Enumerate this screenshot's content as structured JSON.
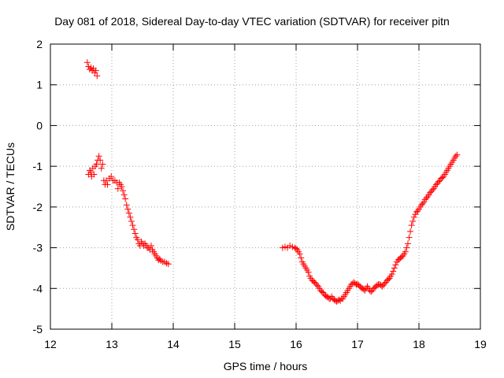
{
  "chart_data": {
    "type": "scatter",
    "title": "Day 081 of 2018, Sidereal Day-to-day VTEC variation (SDTVAR) for receiver pitn",
    "xlabel": "GPS time / hours",
    "ylabel": "SDTVAR / TECUs",
    "xlim": [
      12,
      19
    ],
    "ylim": [
      -5,
      2
    ],
    "xticks": [
      12,
      13,
      14,
      15,
      16,
      17,
      18,
      19
    ],
    "yticks": [
      -5,
      -4,
      -3,
      -2,
      -1,
      0,
      1,
      2
    ],
    "grid": true,
    "marker": "+",
    "series": [
      {
        "name": "SDTVAR",
        "color": "#ff0000",
        "points": [
          [
            12.6,
            1.55
          ],
          [
            12.62,
            1.45
          ],
          [
            12.64,
            1.38
          ],
          [
            12.66,
            1.42
          ],
          [
            12.68,
            1.35
          ],
          [
            12.7,
            1.4
          ],
          [
            12.72,
            1.3
          ],
          [
            12.74,
            1.35
          ],
          [
            12.76,
            1.22
          ],
          [
            12.62,
            -1.2
          ],
          [
            12.64,
            -1.1
          ],
          [
            12.66,
            -1.15
          ],
          [
            12.67,
            -1.25
          ],
          [
            12.69,
            -1.05
          ],
          [
            12.71,
            -1.2
          ],
          [
            12.73,
            -1.0
          ],
          [
            12.75,
            -0.95
          ],
          [
            12.77,
            -0.85
          ],
          [
            12.79,
            -0.75
          ],
          [
            12.81,
            -0.85
          ],
          [
            12.83,
            -1.05
          ],
          [
            12.85,
            -0.95
          ],
          [
            12.87,
            -1.35
          ],
          [
            12.89,
            -1.45
          ],
          [
            12.91,
            -1.35
          ],
          [
            12.93,
            -1.45
          ],
          [
            12.96,
            -1.3
          ],
          [
            12.99,
            -1.25
          ],
          [
            13.02,
            -1.35
          ],
          [
            13.05,
            -1.35
          ],
          [
            13.08,
            -1.4
          ],
          [
            13.1,
            -1.55
          ],
          [
            13.12,
            -1.4
          ],
          [
            13.14,
            -1.45
          ],
          [
            13.16,
            -1.5
          ],
          [
            13.18,
            -1.6
          ],
          [
            13.2,
            -1.7
          ],
          [
            13.22,
            -1.8
          ],
          [
            13.24,
            -1.95
          ],
          [
            13.26,
            -2.05
          ],
          [
            13.28,
            -2.15
          ],
          [
            13.3,
            -2.25
          ],
          [
            13.32,
            -2.35
          ],
          [
            13.34,
            -2.45
          ],
          [
            13.36,
            -2.55
          ],
          [
            13.38,
            -2.65
          ],
          [
            13.4,
            -2.75
          ],
          [
            13.42,
            -2.8
          ],
          [
            13.44,
            -2.9
          ],
          [
            13.46,
            -2.95
          ],
          [
            13.48,
            -2.85
          ],
          [
            13.5,
            -2.9
          ],
          [
            13.52,
            -2.95
          ],
          [
            13.54,
            -2.9
          ],
          [
            13.56,
            -2.95
          ],
          [
            13.58,
            -3.0
          ],
          [
            13.6,
            -3.0
          ],
          [
            13.62,
            -3.05
          ],
          [
            13.64,
            -2.95
          ],
          [
            13.66,
            -3.05
          ],
          [
            13.68,
            -3.1
          ],
          [
            13.7,
            -3.15
          ],
          [
            13.72,
            -3.2
          ],
          [
            13.74,
            -3.25
          ],
          [
            13.76,
            -3.3
          ],
          [
            13.78,
            -3.28
          ],
          [
            13.8,
            -3.32
          ],
          [
            13.83,
            -3.35
          ],
          [
            13.86,
            -3.35
          ],
          [
            13.89,
            -3.38
          ],
          [
            13.92,
            -3.4
          ],
          [
            15.78,
            -3.0
          ],
          [
            15.82,
            -2.98
          ],
          [
            15.86,
            -3.0
          ],
          [
            15.9,
            -2.95
          ],
          [
            15.94,
            -2.98
          ],
          [
            15.98,
            -3.0
          ],
          [
            16.0,
            -3.02
          ],
          [
            16.02,
            -3.05
          ],
          [
            16.04,
            -3.1
          ],
          [
            16.06,
            -3.15
          ],
          [
            16.08,
            -3.25
          ],
          [
            16.1,
            -3.35
          ],
          [
            16.12,
            -3.4
          ],
          [
            16.14,
            -3.45
          ],
          [
            16.16,
            -3.5
          ],
          [
            16.18,
            -3.55
          ],
          [
            16.2,
            -3.6
          ],
          [
            16.22,
            -3.7
          ],
          [
            16.24,
            -3.75
          ],
          [
            16.26,
            -3.8
          ],
          [
            16.28,
            -3.82
          ],
          [
            16.3,
            -3.85
          ],
          [
            16.32,
            -3.88
          ],
          [
            16.34,
            -3.92
          ],
          [
            16.36,
            -3.95
          ],
          [
            16.38,
            -4.0
          ],
          [
            16.4,
            -4.05
          ],
          [
            16.42,
            -4.08
          ],
          [
            16.44,
            -4.1
          ],
          [
            16.46,
            -4.15
          ],
          [
            16.48,
            -4.18
          ],
          [
            16.5,
            -4.2
          ],
          [
            16.52,
            -4.22
          ],
          [
            16.54,
            -4.25
          ],
          [
            16.56,
            -4.25
          ],
          [
            16.58,
            -4.2
          ],
          [
            16.6,
            -4.25
          ],
          [
            16.62,
            -4.28
          ],
          [
            16.64,
            -4.3
          ],
          [
            16.66,
            -4.32
          ],
          [
            16.68,
            -4.3
          ],
          [
            16.7,
            -4.28
          ],
          [
            16.72,
            -4.3
          ],
          [
            16.74,
            -4.25
          ],
          [
            16.76,
            -4.25
          ],
          [
            16.78,
            -4.2
          ],
          [
            16.8,
            -4.15
          ],
          [
            16.82,
            -4.1
          ],
          [
            16.84,
            -4.05
          ],
          [
            16.86,
            -4.0
          ],
          [
            16.88,
            -3.95
          ],
          [
            16.9,
            -3.9
          ],
          [
            16.92,
            -3.88
          ],
          [
            16.94,
            -3.85
          ],
          [
            16.96,
            -3.88
          ],
          [
            16.98,
            -3.9
          ],
          [
            17.0,
            -3.9
          ],
          [
            17.02,
            -3.92
          ],
          [
            17.04,
            -3.95
          ],
          [
            17.06,
            -3.98
          ],
          [
            17.08,
            -4.0
          ],
          [
            17.1,
            -4.02
          ],
          [
            17.12,
            -4.05
          ],
          [
            17.14,
            -4.0
          ],
          [
            17.16,
            -3.95
          ],
          [
            17.18,
            -4.0
          ],
          [
            17.2,
            -4.05
          ],
          [
            17.22,
            -4.08
          ],
          [
            17.24,
            -4.05
          ],
          [
            17.26,
            -4.0
          ],
          [
            17.28,
            -3.98
          ],
          [
            17.3,
            -3.95
          ],
          [
            17.32,
            -3.92
          ],
          [
            17.34,
            -3.9
          ],
          [
            17.36,
            -3.9
          ],
          [
            17.38,
            -3.92
          ],
          [
            17.4,
            -3.95
          ],
          [
            17.42,
            -3.92
          ],
          [
            17.44,
            -3.88
          ],
          [
            17.46,
            -3.85
          ],
          [
            17.48,
            -3.8
          ],
          [
            17.5,
            -3.78
          ],
          [
            17.52,
            -3.75
          ],
          [
            17.54,
            -3.7
          ],
          [
            17.56,
            -3.65
          ],
          [
            17.58,
            -3.58
          ],
          [
            17.6,
            -3.5
          ],
          [
            17.62,
            -3.42
          ],
          [
            17.64,
            -3.35
          ],
          [
            17.66,
            -3.3
          ],
          [
            17.68,
            -3.28
          ],
          [
            17.7,
            -3.25
          ],
          [
            17.72,
            -3.22
          ],
          [
            17.74,
            -3.2
          ],
          [
            17.76,
            -3.15
          ],
          [
            17.78,
            -3.1
          ],
          [
            17.8,
            -3.0
          ],
          [
            17.82,
            -2.9
          ],
          [
            17.84,
            -2.75
          ],
          [
            17.86,
            -2.6
          ],
          [
            17.88,
            -2.45
          ],
          [
            17.9,
            -2.35
          ],
          [
            17.92,
            -2.25
          ],
          [
            17.94,
            -2.18
          ],
          [
            17.96,
            -2.12
          ],
          [
            17.98,
            -2.1
          ],
          [
            18.0,
            -2.05
          ],
          [
            18.02,
            -2.0
          ],
          [
            18.04,
            -1.95
          ],
          [
            18.06,
            -1.92
          ],
          [
            18.08,
            -1.88
          ],
          [
            18.1,
            -1.82
          ],
          [
            18.12,
            -1.78
          ],
          [
            18.14,
            -1.75
          ],
          [
            18.16,
            -1.7
          ],
          [
            18.18,
            -1.65
          ],
          [
            18.2,
            -1.62
          ],
          [
            18.22,
            -1.58
          ],
          [
            18.24,
            -1.55
          ],
          [
            18.26,
            -1.5
          ],
          [
            18.28,
            -1.45
          ],
          [
            18.3,
            -1.42
          ],
          [
            18.32,
            -1.38
          ],
          [
            18.34,
            -1.35
          ],
          [
            18.36,
            -1.3
          ],
          [
            18.38,
            -1.28
          ],
          [
            18.4,
            -1.25
          ],
          [
            18.42,
            -1.2
          ],
          [
            18.44,
            -1.15
          ],
          [
            18.46,
            -1.1
          ],
          [
            18.48,
            -1.05
          ],
          [
            18.5,
            -1.0
          ],
          [
            18.52,
            -0.95
          ],
          [
            18.54,
            -0.9
          ],
          [
            18.56,
            -0.85
          ],
          [
            18.58,
            -0.8
          ],
          [
            18.6,
            -0.75
          ],
          [
            18.62,
            -0.72
          ]
        ]
      }
    ]
  }
}
